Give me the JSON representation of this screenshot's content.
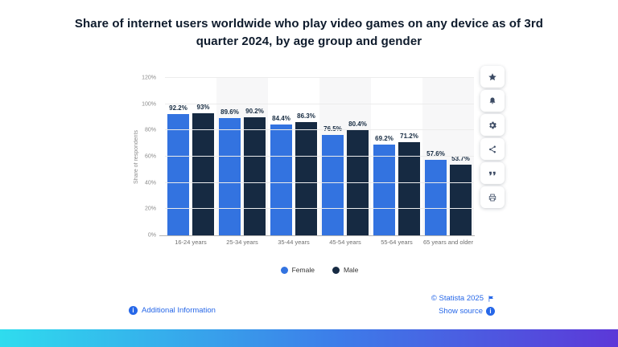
{
  "title": "Share of internet users worldwide who play video games on any device as of 3rd quarter 2024, by age group and gender",
  "chart_data": {
    "type": "bar",
    "categories": [
      "16-24 years",
      "25-34 years",
      "35-44 years",
      "45-54 years",
      "55-64 years",
      "65 years and older"
    ],
    "series": [
      {
        "name": "Female",
        "color": "#3373e0",
        "values": [
          92.2,
          89.6,
          84.4,
          76.5,
          69.2,
          57.6
        ]
      },
      {
        "name": "Male",
        "color": "#162a42",
        "values": [
          93,
          90.2,
          86.3,
          80.4,
          71.2,
          53.7
        ]
      }
    ],
    "ylabel": "Share of respondents",
    "yticks": [
      0,
      20,
      40,
      60,
      80,
      100,
      120
    ],
    "ylim": [
      0,
      120
    ],
    "grid": true,
    "legend_position": "bottom",
    "value_label_suffix": "%",
    "tick_suffix": "%"
  },
  "sidebar": {
    "icons": [
      "star",
      "bell",
      "gear",
      "share",
      "quote",
      "printer"
    ]
  },
  "footer": {
    "additional_info": "Additional Information",
    "copyright": "© Statista 2025",
    "show_source": "Show source"
  },
  "colors": {
    "female_bar": "#3373e0",
    "male_bar": "#162a42",
    "link_blue": "#2667e8",
    "title_text": "#0e1b2c",
    "band_shade": "#f7f7f8",
    "gradient_left": "#2fdcee",
    "gradient_mid": "#3d7ce9",
    "gradient_right": "#5c38d8"
  }
}
